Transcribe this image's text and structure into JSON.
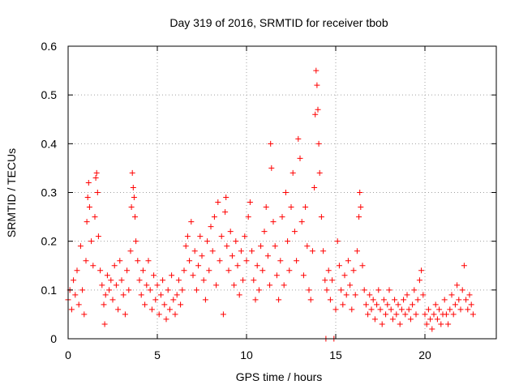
{
  "chart_data": {
    "type": "scatter",
    "title": "Day 319 of 2016, SRMTID for receiver tbob",
    "xlabel": "GPS time / hours",
    "ylabel": "SRMTID / TECUs",
    "xlim": [
      0,
      24
    ],
    "ylim": [
      0,
      0.6
    ],
    "xticks": [
      0,
      5,
      10,
      15,
      20
    ],
    "xtick_labels": [
      "0",
      "5",
      "10",
      "15",
      "20"
    ],
    "yticks": [
      0,
      0.1,
      0.2,
      0.3,
      0.4,
      0.5,
      0.6
    ],
    "ytick_labels": [
      "0",
      "0.1",
      "0.2",
      "0.3",
      "0.4",
      "0.5",
      "0.6"
    ],
    "grid": true,
    "marker": "+",
    "color": "#ff0000",
    "series": [
      {
        "name": "SRMTID",
        "points": [
          [
            0.0,
            0.08
          ],
          [
            0.1,
            0.1
          ],
          [
            0.2,
            0.06
          ],
          [
            0.3,
            0.12
          ],
          [
            0.4,
            0.09
          ],
          [
            0.5,
            0.14
          ],
          [
            0.6,
            0.07
          ],
          [
            0.7,
            0.19
          ],
          [
            0.8,
            0.1
          ],
          [
            0.9,
            0.05
          ],
          [
            1.0,
            0.16
          ],
          [
            1.05,
            0.24
          ],
          [
            1.1,
            0.29
          ],
          [
            1.15,
            0.32
          ],
          [
            1.2,
            0.27
          ],
          [
            1.3,
            0.2
          ],
          [
            1.4,
            0.15
          ],
          [
            1.5,
            0.25
          ],
          [
            1.55,
            0.33
          ],
          [
            1.6,
            0.34
          ],
          [
            1.65,
            0.3
          ],
          [
            1.7,
            0.21
          ],
          [
            1.8,
            0.14
          ],
          [
            1.9,
            0.11
          ],
          [
            2.0,
            0.07
          ],
          [
            2.05,
            0.03
          ],
          [
            2.1,
            0.09
          ],
          [
            2.2,
            0.13
          ],
          [
            2.3,
            0.1
          ],
          [
            2.4,
            0.12
          ],
          [
            2.5,
            0.08
          ],
          [
            2.6,
            0.15
          ],
          [
            2.7,
            0.11
          ],
          [
            2.8,
            0.06
          ],
          [
            2.9,
            0.16
          ],
          [
            3.0,
            0.12
          ],
          [
            3.1,
            0.09
          ],
          [
            3.2,
            0.05
          ],
          [
            3.3,
            0.14
          ],
          [
            3.4,
            0.1
          ],
          [
            3.5,
            0.18
          ],
          [
            3.55,
            0.27
          ],
          [
            3.6,
            0.34
          ],
          [
            3.65,
            0.31
          ],
          [
            3.7,
            0.29
          ],
          [
            3.75,
            0.25
          ],
          [
            3.8,
            0.2
          ],
          [
            3.9,
            0.16
          ],
          [
            4.0,
            0.12
          ],
          [
            4.1,
            0.09
          ],
          [
            4.2,
            0.14
          ],
          [
            4.3,
            0.07
          ],
          [
            4.4,
            0.11
          ],
          [
            4.5,
            0.16
          ],
          [
            4.6,
            0.1
          ],
          [
            4.7,
            0.06
          ],
          [
            4.8,
            0.13
          ],
          [
            4.9,
            0.08
          ],
          [
            5.0,
            0.11
          ],
          [
            5.1,
            0.05
          ],
          [
            5.2,
            0.09
          ],
          [
            5.3,
            0.12
          ],
          [
            5.4,
            0.07
          ],
          [
            5.5,
            0.04
          ],
          [
            5.6,
            0.1
          ],
          [
            5.7,
            0.06
          ],
          [
            5.8,
            0.13
          ],
          [
            5.9,
            0.08
          ],
          [
            6.0,
            0.05
          ],
          [
            6.1,
            0.09
          ],
          [
            6.2,
            0.12
          ],
          [
            6.3,
            0.07
          ],
          [
            6.4,
            0.1
          ],
          [
            6.5,
            0.14
          ],
          [
            6.6,
            0.19
          ],
          [
            6.7,
            0.21
          ],
          [
            6.8,
            0.16
          ],
          [
            6.9,
            0.24
          ],
          [
            7.0,
            0.13
          ],
          [
            7.1,
            0.18
          ],
          [
            7.2,
            0.1
          ],
          [
            7.3,
            0.15
          ],
          [
            7.4,
            0.21
          ],
          [
            7.5,
            0.17
          ],
          [
            7.6,
            0.12
          ],
          [
            7.7,
            0.08
          ],
          [
            7.8,
            0.2
          ],
          [
            7.9,
            0.14
          ],
          [
            8.0,
            0.23
          ],
          [
            8.1,
            0.18
          ],
          [
            8.2,
            0.25
          ],
          [
            8.3,
            0.11
          ],
          [
            8.4,
            0.28
          ],
          [
            8.5,
            0.16
          ],
          [
            8.6,
            0.21
          ],
          [
            8.7,
            0.05
          ],
          [
            8.8,
            0.26
          ],
          [
            8.85,
            0.29
          ],
          [
            8.9,
            0.19
          ],
          [
            9.0,
            0.14
          ],
          [
            9.1,
            0.22
          ],
          [
            9.2,
            0.17
          ],
          [
            9.3,
            0.11
          ],
          [
            9.4,
            0.2
          ],
          [
            9.5,
            0.15
          ],
          [
            9.6,
            0.09
          ],
          [
            9.7,
            0.18
          ],
          [
            9.8,
            0.12
          ],
          [
            9.9,
            0.21
          ],
          [
            10.0,
            0.16
          ],
          [
            10.1,
            0.25
          ],
          [
            10.2,
            0.28
          ],
          [
            10.3,
            0.18
          ],
          [
            10.4,
            0.12
          ],
          [
            10.5,
            0.08
          ],
          [
            10.6,
            0.15
          ],
          [
            10.7,
            0.1
          ],
          [
            10.8,
            0.19
          ],
          [
            10.9,
            0.14
          ],
          [
            11.0,
            0.22
          ],
          [
            11.1,
            0.27
          ],
          [
            11.2,
            0.17
          ],
          [
            11.3,
            0.11
          ],
          [
            11.35,
            0.4
          ],
          [
            11.4,
            0.35
          ],
          [
            11.5,
            0.24
          ],
          [
            11.6,
            0.19
          ],
          [
            11.7,
            0.13
          ],
          [
            11.8,
            0.08
          ],
          [
            11.9,
            0.16
          ],
          [
            12.0,
            0.25
          ],
          [
            12.1,
            0.11
          ],
          [
            12.2,
            0.3
          ],
          [
            12.3,
            0.2
          ],
          [
            12.4,
            0.14
          ],
          [
            12.5,
            0.27
          ],
          [
            12.6,
            0.34
          ],
          [
            12.7,
            0.22
          ],
          [
            12.8,
            0.16
          ],
          [
            12.9,
            0.41
          ],
          [
            13.0,
            0.37
          ],
          [
            13.1,
            0.24
          ],
          [
            13.2,
            0.13
          ],
          [
            13.3,
            0.27
          ],
          [
            13.4,
            0.19
          ],
          [
            13.5,
            0.1
          ],
          [
            13.6,
            0.08
          ],
          [
            13.7,
            0.18
          ],
          [
            13.8,
            0.31
          ],
          [
            13.85,
            0.46
          ],
          [
            13.9,
            0.55
          ],
          [
            13.95,
            0.52
          ],
          [
            14.0,
            0.47
          ],
          [
            14.05,
            0.4
          ],
          [
            14.1,
            0.34
          ],
          [
            14.2,
            0.25
          ],
          [
            14.3,
            0.18
          ],
          [
            14.4,
            0.12
          ],
          [
            14.45,
            0.0
          ],
          [
            14.5,
            0.1
          ],
          [
            14.6,
            0.14
          ],
          [
            14.7,
            0.08
          ],
          [
            14.8,
            0.12
          ],
          [
            14.9,
            0.0
          ],
          [
            15.0,
            0.06
          ],
          [
            15.1,
            0.2
          ],
          [
            15.2,
            0.15
          ],
          [
            15.3,
            0.1
          ],
          [
            15.4,
            0.07
          ],
          [
            15.5,
            0.13
          ],
          [
            15.6,
            0.09
          ],
          [
            15.7,
            0.16
          ],
          [
            15.8,
            0.11
          ],
          [
            15.9,
            0.06
          ],
          [
            16.0,
            0.14
          ],
          [
            16.1,
            0.09
          ],
          [
            16.2,
            0.18
          ],
          [
            16.3,
            0.25
          ],
          [
            16.35,
            0.3
          ],
          [
            16.4,
            0.27
          ],
          [
            16.5,
            0.15
          ],
          [
            16.6,
            0.1
          ],
          [
            16.7,
            0.07
          ],
          [
            16.8,
            0.05
          ],
          [
            16.9,
            0.09
          ],
          [
            17.0,
            0.06
          ],
          [
            17.1,
            0.08
          ],
          [
            17.2,
            0.04
          ],
          [
            17.3,
            0.07
          ],
          [
            17.4,
            0.1
          ],
          [
            17.5,
            0.06
          ],
          [
            17.6,
            0.03
          ],
          [
            17.7,
            0.08
          ],
          [
            17.8,
            0.05
          ],
          [
            17.9,
            0.07
          ],
          [
            18.0,
            0.1
          ],
          [
            18.1,
            0.06
          ],
          [
            18.2,
            0.04
          ],
          [
            18.3,
            0.08
          ],
          [
            18.4,
            0.05
          ],
          [
            18.5,
            0.07
          ],
          [
            18.6,
            0.03
          ],
          [
            18.7,
            0.06
          ],
          [
            18.8,
            0.08
          ],
          [
            18.9,
            0.05
          ],
          [
            19.0,
            0.09
          ],
          [
            19.1,
            0.06
          ],
          [
            19.2,
            0.04
          ],
          [
            19.3,
            0.07
          ],
          [
            19.4,
            0.1
          ],
          [
            19.5,
            0.05
          ],
          [
            19.6,
            0.08
          ],
          [
            19.7,
            0.12
          ],
          [
            19.8,
            0.14
          ],
          [
            19.9,
            0.09
          ],
          [
            20.0,
            0.05
          ],
          [
            20.1,
            0.03
          ],
          [
            20.2,
            0.06
          ],
          [
            20.3,
            0.04
          ],
          [
            20.4,
            0.02
          ],
          [
            20.5,
            0.05
          ],
          [
            20.6,
            0.07
          ],
          [
            20.7,
            0.04
          ],
          [
            20.8,
            0.06
          ],
          [
            20.9,
            0.03
          ],
          [
            21.0,
            0.05
          ],
          [
            21.1,
            0.08
          ],
          [
            21.2,
            0.05
          ],
          [
            21.3,
            0.03
          ],
          [
            21.4,
            0.06
          ],
          [
            21.5,
            0.09
          ],
          [
            21.6,
            0.05
          ],
          [
            21.7,
            0.07
          ],
          [
            21.8,
            0.11
          ],
          [
            21.9,
            0.08
          ],
          [
            22.0,
            0.06
          ],
          [
            22.1,
            0.1
          ],
          [
            22.2,
            0.15
          ],
          [
            22.3,
            0.08
          ],
          [
            22.4,
            0.06
          ],
          [
            22.5,
            0.09
          ],
          [
            22.6,
            0.07
          ],
          [
            22.7,
            0.05
          ]
        ]
      }
    ]
  }
}
